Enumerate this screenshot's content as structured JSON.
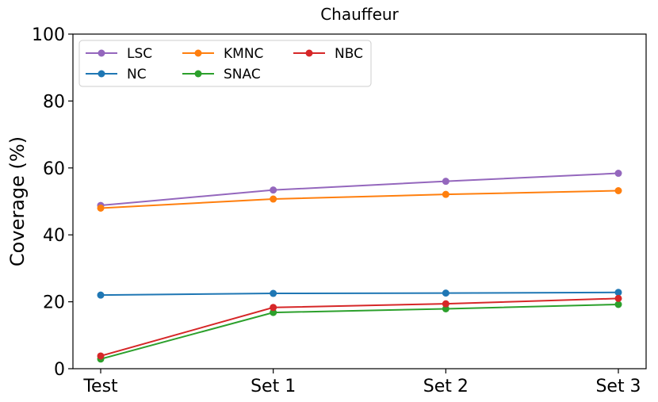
{
  "chart_data": {
    "type": "line",
    "title": "Chauffeur",
    "xlabel": "",
    "ylabel": "Coverage (%)",
    "categories": [
      "Test",
      "Set 1",
      "Set 2",
      "Set 3"
    ],
    "ylim": [
      0,
      100
    ],
    "yticks": [
      0,
      20,
      40,
      60,
      80,
      100
    ],
    "grid": false,
    "legend_position": "top-left",
    "legend_columns": 3,
    "series": [
      {
        "name": "LSC",
        "color": "#9467bd",
        "values": [
          48.8,
          53.4,
          56.0,
          58.4
        ]
      },
      {
        "name": "NC",
        "color": "#1f77b4",
        "values": [
          22.0,
          22.5,
          22.6,
          22.8
        ]
      },
      {
        "name": "KMNC",
        "color": "#ff7f0e",
        "values": [
          48.0,
          50.7,
          52.1,
          53.2
        ]
      },
      {
        "name": "SNAC",
        "color": "#2ca02c",
        "values": [
          2.9,
          16.8,
          17.9,
          19.2
        ]
      },
      {
        "name": "NBC",
        "color": "#d62728",
        "values": [
          3.8,
          18.3,
          19.4,
          21.0
        ]
      }
    ]
  }
}
